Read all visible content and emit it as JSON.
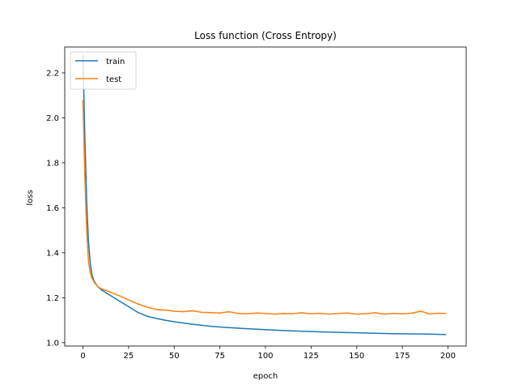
{
  "chart_data": {
    "type": "line",
    "title": "Loss function (Cross Entropy)",
    "xlabel": "epoch",
    "ylabel": "loss",
    "xlim": [
      -10,
      210
    ],
    "ylim": [
      0.985,
      2.315
    ],
    "xticks": [
      0,
      25,
      50,
      75,
      100,
      125,
      150,
      175,
      200
    ],
    "yticks": [
      1.0,
      1.2,
      1.4,
      1.6,
      1.8,
      2.0,
      2.2
    ],
    "ytick_labels": [
      "1.0",
      "1.2",
      "1.4",
      "1.6",
      "1.8",
      "2.0",
      "2.2"
    ],
    "grid": false,
    "legend_position": "top-left",
    "series": [
      {
        "name": "train",
        "color": "#1f77b4",
        "x": [
          0,
          1,
          2,
          3,
          4,
          5,
          6,
          8,
          10,
          15,
          20,
          25,
          30,
          35,
          40,
          45,
          50,
          60,
          70,
          80,
          90,
          100,
          110,
          120,
          130,
          140,
          150,
          160,
          170,
          180,
          190,
          199
        ],
        "y": [
          2.28,
          1.92,
          1.63,
          1.45,
          1.35,
          1.3,
          1.275,
          1.25,
          1.235,
          1.21,
          1.185,
          1.16,
          1.135,
          1.118,
          1.108,
          1.1,
          1.093,
          1.082,
          1.073,
          1.067,
          1.062,
          1.058,
          1.054,
          1.051,
          1.048,
          1.046,
          1.044,
          1.042,
          1.04,
          1.039,
          1.038,
          1.036
        ]
      },
      {
        "name": "test",
        "color": "#ff7f0e",
        "x": [
          0,
          1,
          2,
          3,
          4,
          5,
          6,
          8,
          10,
          15,
          20,
          25,
          30,
          35,
          40,
          45,
          50,
          55,
          60,
          65,
          70,
          75,
          80,
          85,
          90,
          95,
          100,
          105,
          110,
          115,
          120,
          125,
          130,
          135,
          140,
          145,
          150,
          155,
          160,
          165,
          170,
          175,
          180,
          185,
          190,
          195,
          199
        ],
        "y": [
          2.08,
          1.74,
          1.5,
          1.36,
          1.31,
          1.285,
          1.27,
          1.25,
          1.24,
          1.225,
          1.208,
          1.19,
          1.172,
          1.158,
          1.148,
          1.145,
          1.14,
          1.138,
          1.142,
          1.135,
          1.134,
          1.132,
          1.138,
          1.13,
          1.128,
          1.132,
          1.13,
          1.127,
          1.13,
          1.129,
          1.133,
          1.128,
          1.131,
          1.127,
          1.13,
          1.132,
          1.127,
          1.129,
          1.133,
          1.127,
          1.13,
          1.128,
          1.131,
          1.14,
          1.128,
          1.131,
          1.13
        ]
      }
    ]
  }
}
